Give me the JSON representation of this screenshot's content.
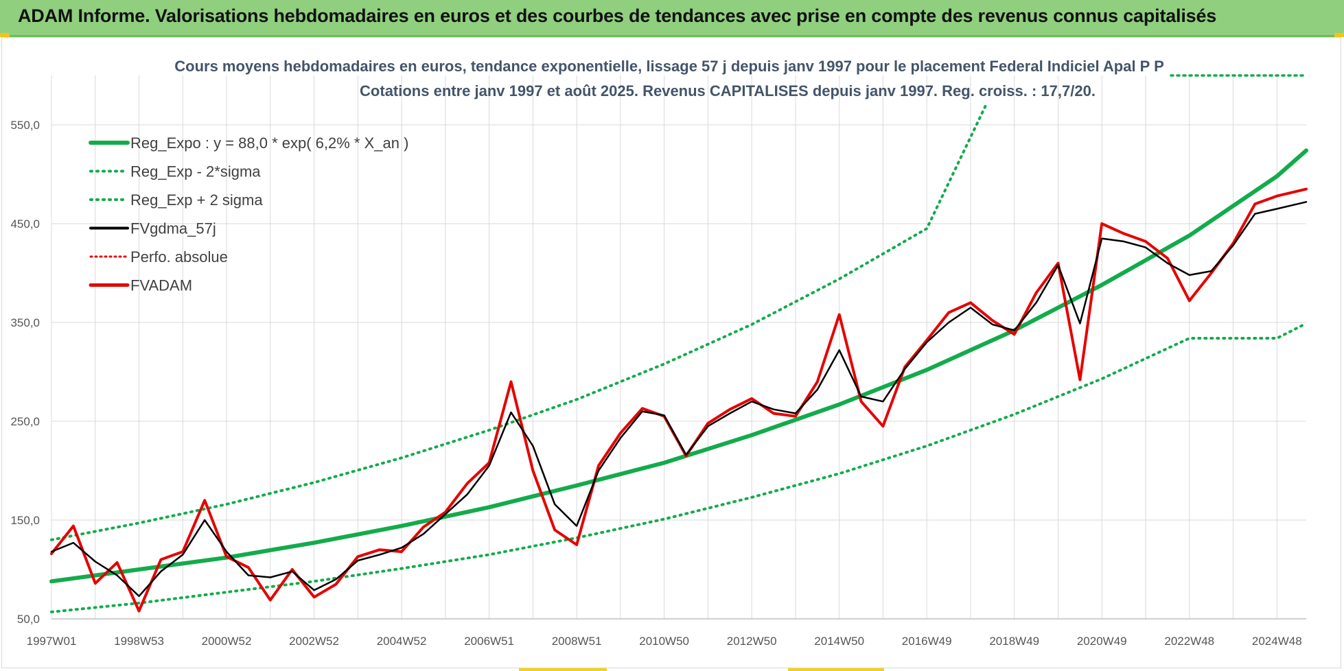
{
  "header": {
    "title": "ADAM Informe. Valorisations hebdomadaires en euros et des courbes de tendances avec prise en compte des revenus connus capitalisés"
  },
  "chart_data": {
    "type": "line",
    "title": "Cours moyens hebdomadaires en euros, tendance exponentielle, lissage 57 j depuis janv 1997 pour le placement Federal Indiciel Apal P P",
    "subtitle": "Cotations entre janv 1997 et août 2025. Revenus CAPITALISES depuis janv 1997. Reg. croiss. : 17,7/20.",
    "x_range": [
      1997.0,
      2025.67
    ],
    "ylim": [
      50,
      600
    ],
    "y_ticks": [
      "550,0",
      "450,0",
      "350,0",
      "250,0",
      "150,0",
      "50,0"
    ],
    "y_tick_values": [
      550,
      450,
      350,
      250,
      150,
      50
    ],
    "x_ticks": [
      "1997W01",
      "1998W53",
      "2000W52",
      "2002W52",
      "2004W52",
      "2006W51",
      "2008W51",
      "2010W50",
      "2012W50",
      "2014W50",
      "2016W49",
      "2018W49",
      "2020W49",
      "2022W48",
      "2024W48"
    ],
    "x_tick_positions": [
      1997.0,
      1999.0,
      2001.0,
      2003.0,
      2005.0,
      2007.0,
      2009.0,
      2011.0,
      2013.0,
      2015.0,
      2017.0,
      2019.0,
      2021.0,
      2023.0,
      2025.0
    ],
    "grid": true,
    "legend_position": "top-left",
    "series": [
      {
        "name": "Reg_Expo : y = 88,0 * exp( 6,2% *  X_an )",
        "color": "#13ab4c",
        "style": "solid",
        "x": [
          1997,
          1999,
          2001,
          2003,
          2005,
          2007,
          2009,
          2011,
          2013,
          2015,
          2017,
          2019,
          2021,
          2023,
          2025,
          2025.67
        ],
        "values": [
          88,
          100,
          112,
          127,
          144,
          163,
          185,
          208,
          236,
          267,
          302,
          342,
          388,
          438,
          498,
          524
        ]
      },
      {
        "name": "Reg_Exp - 2*sigma",
        "color": "#13ab4c",
        "style": "dotted",
        "x": [
          1997,
          1999,
          2001,
          2003,
          2005,
          2007,
          2009,
          2011,
          2013,
          2015,
          2017,
          2019,
          2021,
          2023,
          2025,
          2025.67
        ],
        "values": [
          57,
          66,
          77,
          88,
          101,
          115,
          132,
          151,
          173,
          197,
          225,
          257,
          293,
          334,
          334,
          349
        ]
      },
      {
        "name": "Reg_Exp + 2 sigma",
        "color": "#13ab4c",
        "style": "dotted",
        "x": [
          1997,
          1999,
          2001,
          2003,
          2005,
          2007,
          2009,
          2011,
          2013,
          2015,
          2017,
          2018.35
        ],
        "values": [
          130,
          147,
          166,
          188,
          213,
          241,
          272,
          308,
          348,
          394,
          445,
          570
        ]
      },
      {
        "name": "FVgdma_57j",
        "color": "#000000",
        "style": "solid",
        "x": [
          1997,
          1997.5,
          1998,
          1998.5,
          1999,
          1999.5,
          2000,
          2000.5,
          2001,
          2001.5,
          2002,
          2002.5,
          2003,
          2003.5,
          2004,
          2004.5,
          2005,
          2005.5,
          2006,
          2006.5,
          2007,
          2007.5,
          2008,
          2008.5,
          2009,
          2009.5,
          2010,
          2010.5,
          2011,
          2011.5,
          2012,
          2012.5,
          2013,
          2013.5,
          2014,
          2014.5,
          2015,
          2015.5,
          2016,
          2016.5,
          2017,
          2017.5,
          2018,
          2018.5,
          2019,
          2019.5,
          2020,
          2020.5,
          2021,
          2021.5,
          2022,
          2022.5,
          2023,
          2023.5,
          2024,
          2024.5,
          2025,
          2025.67
        ],
        "values": [
          118,
          127,
          108,
          94,
          73,
          98,
          115,
          150,
          118,
          94,
          92,
          98,
          79,
          90,
          109,
          115,
          122,
          136,
          156,
          176,
          205,
          259,
          225,
          166,
          144,
          200,
          233,
          260,
          256,
          216,
          245,
          258,
          270,
          262,
          258,
          282,
          322,
          275,
          270,
          303,
          330,
          350,
          365,
          348,
          342,
          370,
          408,
          349,
          435,
          432,
          426,
          410,
          398,
          402,
          428,
          460,
          465,
          472
        ]
      },
      {
        "name": "Perfo. absolue",
        "color": "#e60000",
        "style": "dotted",
        "x": [],
        "values": []
      },
      {
        "name": "FVADAM",
        "color": "#e60000",
        "style": "solid",
        "x": [
          1997,
          1997.5,
          1998,
          1998.5,
          1999,
          1999.5,
          2000,
          2000.5,
          2001,
          2001.5,
          2002,
          2002.5,
          2003,
          2003.5,
          2004,
          2004.5,
          2005,
          2005.5,
          2006,
          2006.5,
          2007,
          2007.5,
          2008,
          2008.5,
          2009,
          2009.5,
          2010,
          2010.5,
          2011,
          2011.5,
          2012,
          2012.5,
          2013,
          2013.5,
          2014,
          2014.5,
          2015,
          2015.5,
          2016,
          2016.5,
          2017,
          2017.5,
          2018,
          2018.5,
          2019,
          2019.5,
          2020,
          2020.5,
          2021,
          2021.5,
          2022,
          2022.5,
          2023,
          2023.5,
          2024,
          2024.5,
          2025,
          2025.67
        ],
        "values": [
          116,
          144,
          86,
          107,
          58,
          110,
          118,
          170,
          113,
          102,
          69,
          100,
          72,
          85,
          113,
          120,
          118,
          143,
          158,
          187,
          208,
          290,
          200,
          140,
          125,
          205,
          238,
          263,
          255,
          215,
          248,
          262,
          273,
          258,
          255,
          290,
          358,
          270,
          245,
          305,
          332,
          360,
          370,
          352,
          338,
          380,
          410,
          292,
          450,
          440,
          432,
          415,
          372,
          400,
          430,
          470,
          478,
          485
        ]
      }
    ]
  }
}
